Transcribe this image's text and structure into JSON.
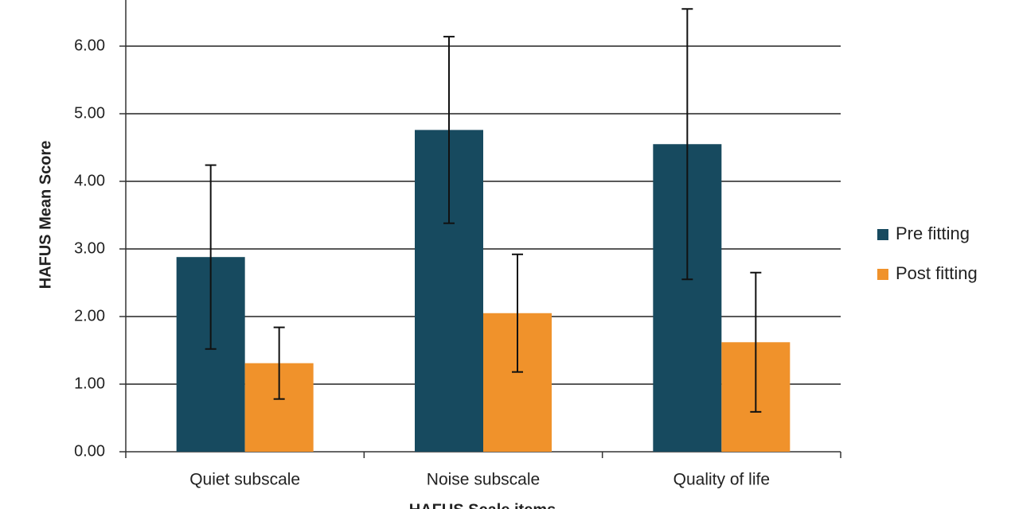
{
  "chart_data": {
    "type": "bar",
    "y_label": "HAFUS Mean Score",
    "x_label": "HAFUS Scale items",
    "categories": [
      "Quiet subscale",
      "Noise subscale",
      "Quality of life"
    ],
    "series": [
      {
        "name": "Pre fitting",
        "color": "#174a5f",
        "values": [
          2.88,
          4.76,
          4.55
        ],
        "errors": [
          1.36,
          1.38,
          2.0
        ]
      },
      {
        "name": "Post fitting",
        "color": "#f0922b",
        "values": [
          1.31,
          2.05,
          1.62
        ],
        "errors": [
          0.53,
          0.87,
          1.03
        ]
      }
    ],
    "ylim": [
      0,
      7
    ],
    "yticks": [
      {
        "value": 0,
        "label": "0.00"
      },
      {
        "value": 1,
        "label": "1.00"
      },
      {
        "value": 2,
        "label": "2.00"
      },
      {
        "value": 3,
        "label": "3.00"
      },
      {
        "value": 4,
        "label": "4.00"
      },
      {
        "value": 5,
        "label": "5.00"
      },
      {
        "value": 6,
        "label": "6.00"
      }
    ],
    "grid": true,
    "legend": "right"
  }
}
